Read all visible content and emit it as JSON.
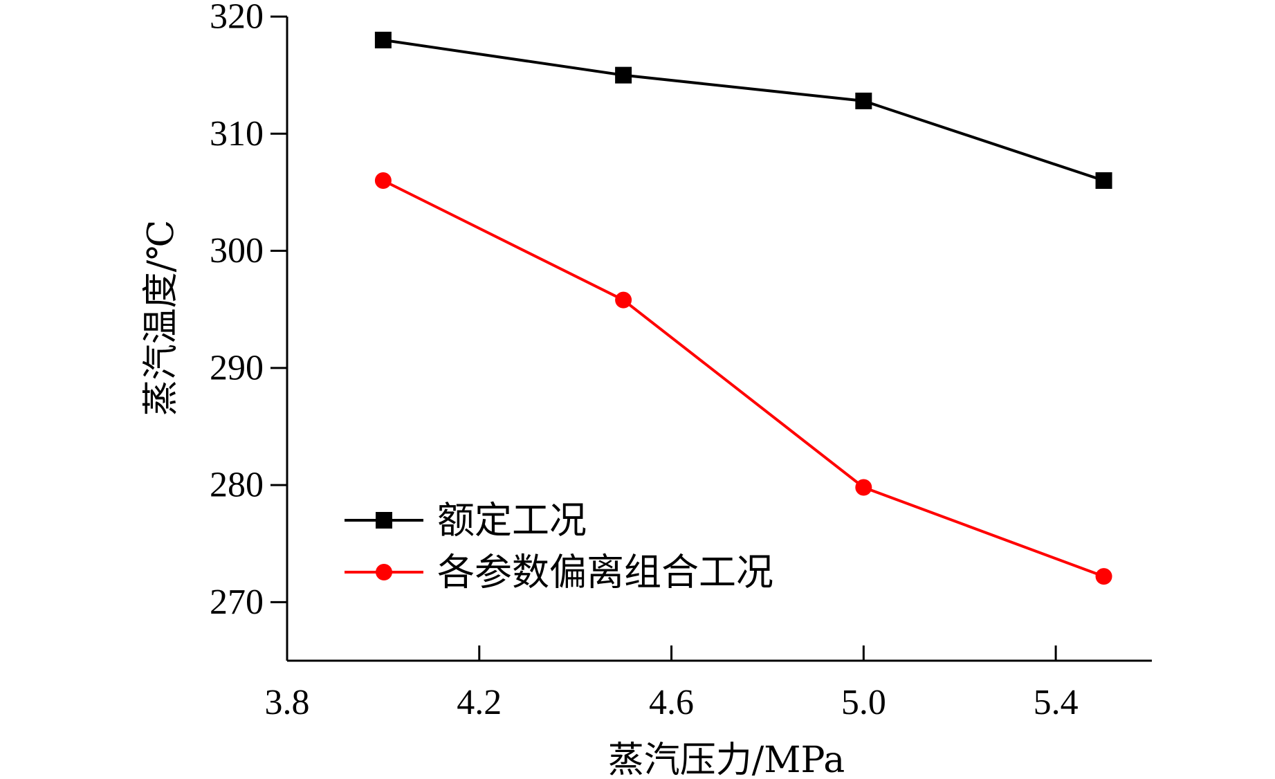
{
  "chart_data": {
    "type": "line",
    "xlabel": "蒸汽压力/MPa",
    "ylabel": "蒸汽温度/℃",
    "xlim": [
      3.8,
      5.6
    ],
    "ylim": [
      265,
      320
    ],
    "xticks": [
      "3.8",
      "4.2",
      "4.6",
      "5.0",
      "5.4"
    ],
    "yticks": [
      "270",
      "280",
      "290",
      "300",
      "310",
      "320"
    ],
    "x": [
      4.0,
      4.5,
      5.0,
      5.5
    ],
    "series": [
      {
        "name": "额定工况",
        "values": [
          318,
          315,
          312.8,
          306
        ],
        "color": "#000000",
        "marker": "square"
      },
      {
        "name": "各参数偏离组合工况",
        "values": [
          306,
          295.8,
          279.8,
          272.2
        ],
        "color": "#ff0000",
        "marker": "circle"
      }
    ],
    "legend_position": "bottom-left",
    "grid": false
  }
}
